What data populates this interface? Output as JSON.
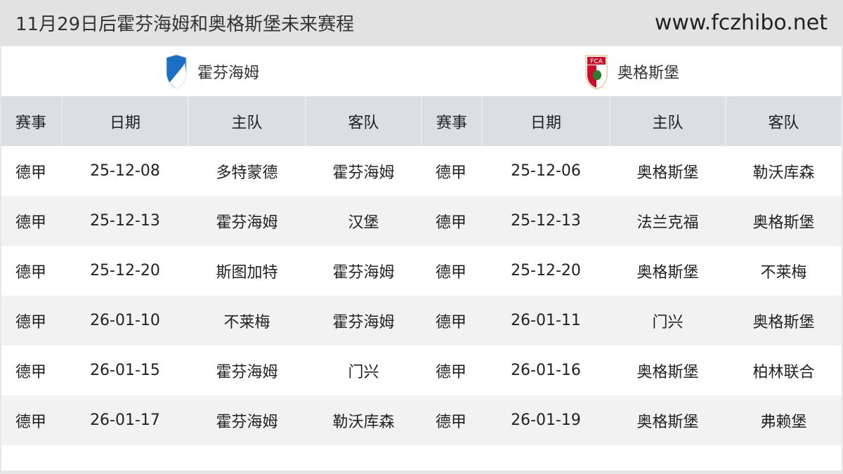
{
  "header": {
    "title": "11月29日后霍芬海姆和奥格斯堡未来赛程",
    "site": "www.fczhibo.net"
  },
  "teams": [
    {
      "name": "霍芬海姆",
      "icon": "hoffenheim-crest-icon",
      "color": "#1a6fc4"
    },
    {
      "name": "奥格斯堡",
      "icon": "augsburg-crest-icon",
      "color": "#c8102e"
    }
  ],
  "columns": [
    "赛事",
    "日期",
    "主队",
    "客队",
    "赛事",
    "日期",
    "主队",
    "客队"
  ],
  "rows": [
    [
      "德甲",
      "25-12-08",
      "多特蒙德",
      "霍芬海姆",
      "德甲",
      "25-12-06",
      "奥格斯堡",
      "勒沃库森"
    ],
    [
      "德甲",
      "25-12-13",
      "霍芬海姆",
      "汉堡",
      "德甲",
      "25-12-13",
      "法兰克福",
      "奥格斯堡"
    ],
    [
      "德甲",
      "25-12-20",
      "斯图加特",
      "霍芬海姆",
      "德甲",
      "25-12-20",
      "奥格斯堡",
      "不莱梅"
    ],
    [
      "德甲",
      "26-01-10",
      "不莱梅",
      "霍芬海姆",
      "德甲",
      "26-01-11",
      "门兴",
      "奥格斯堡"
    ],
    [
      "德甲",
      "26-01-15",
      "霍芬海姆",
      "门兴",
      "德甲",
      "26-01-16",
      "奥格斯堡",
      "柏林联合"
    ],
    [
      "德甲",
      "26-01-17",
      "霍芬海姆",
      "勒沃库森",
      "德甲",
      "26-01-19",
      "奥格斯堡",
      "弗赖堡"
    ]
  ]
}
